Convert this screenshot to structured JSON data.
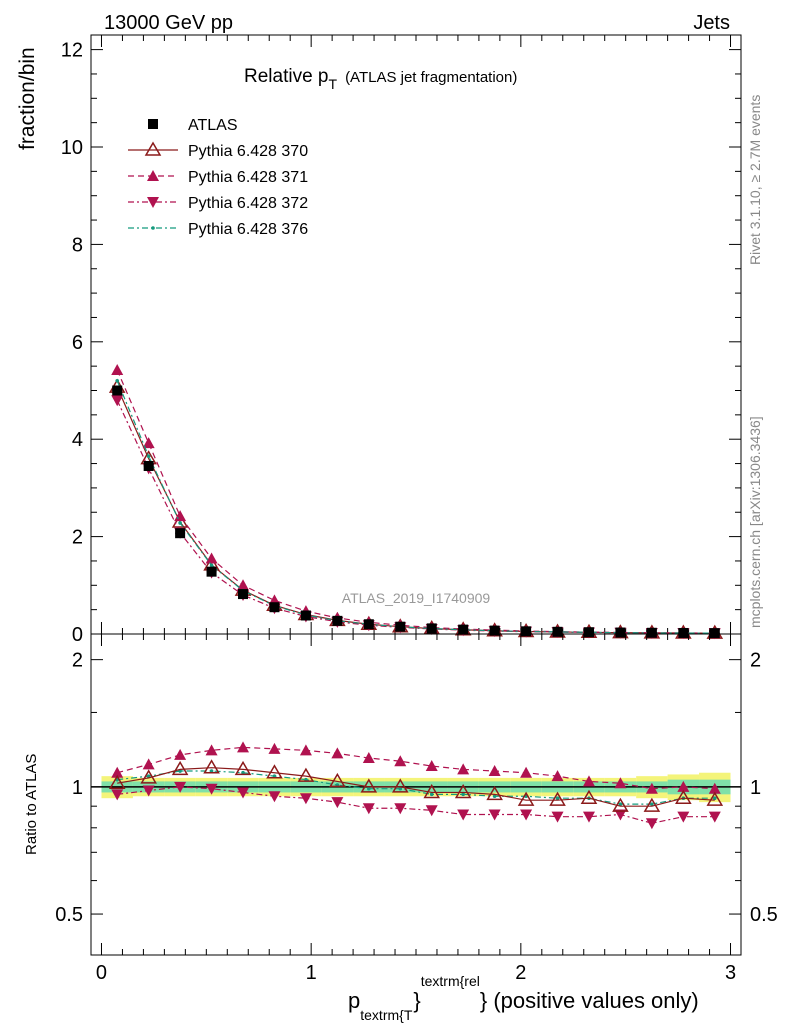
{
  "header": {
    "left": "13000 GeV pp",
    "right": "Jets"
  },
  "title": {
    "main": "Relative p",
    "sub": "T",
    "paren": "(ATLAS jet fragmentation)"
  },
  "side_labels": {
    "rivet": "Rivet 3.1.10, ≥ 2.7M events",
    "mcplots": "mcplots.cern.ch [arXiv:1306.3436]"
  },
  "analysis_tag": "ATLAS_2019_I1740909",
  "colors": {
    "data": "#000000",
    "p370": "#8b1a1a",
    "p371": "#b0124f",
    "p372": "#b0124f",
    "p376": "#159a7d",
    "band_inner": "#7fe0a8",
    "band_outer": "#f4f47a"
  },
  "chart_data": [
    {
      "type": "line",
      "panel": "main",
      "ylabel": "fraction/bin",
      "xlim": [
        -0.05,
        3.05
      ],
      "ylim": [
        0,
        12.3
      ],
      "yticks": [
        0,
        2,
        4,
        6,
        8,
        10,
        12
      ],
      "x": [
        0.075,
        0.225,
        0.375,
        0.525,
        0.675,
        0.825,
        0.975,
        1.125,
        1.275,
        1.425,
        1.575,
        1.725,
        1.875,
        2.025,
        2.175,
        2.325,
        2.475,
        2.625,
        2.775,
        2.925
      ],
      "series": [
        {
          "name": "ATLAS",
          "marker": "square",
          "values": [
            5.0,
            3.45,
            2.07,
            1.28,
            0.82,
            0.55,
            0.38,
            0.27,
            0.2,
            0.15,
            0.115,
            0.09,
            0.07,
            0.055,
            0.045,
            0.037,
            0.03,
            0.025,
            0.021,
            0.018
          ]
        },
        {
          "name": "Pythia 6.428 370",
          "marker": "triangle-open",
          "dash": "solid",
          "values": [
            5.07,
            3.6,
            2.3,
            1.42,
            0.9,
            0.59,
            0.4,
            0.28,
            0.2,
            0.15,
            0.112,
            0.087,
            0.067,
            0.051,
            0.042,
            0.035,
            0.027,
            0.023,
            0.02,
            0.017
          ]
        },
        {
          "name": "Pythia 6.428 371",
          "marker": "triangle-up",
          "dash": "dashed",
          "values": [
            5.42,
            3.92,
            2.42,
            1.55,
            1.0,
            0.69,
            0.47,
            0.33,
            0.24,
            0.18,
            0.132,
            0.103,
            0.08,
            0.061,
            0.049,
            0.039,
            0.031,
            0.025,
            0.021,
            0.018
          ]
        },
        {
          "name": "Pythia 6.428 372",
          "marker": "triangle-down",
          "dash": "dashdot",
          "values": [
            4.8,
            3.4,
            2.08,
            1.26,
            0.8,
            0.53,
            0.36,
            0.25,
            0.18,
            0.135,
            0.103,
            0.078,
            0.06,
            0.048,
            0.039,
            0.032,
            0.026,
            0.021,
            0.018,
            0.016
          ]
        },
        {
          "name": "Pythia 6.428 376",
          "marker": "dot",
          "dash": "dashdot",
          "values": [
            5.2,
            3.65,
            2.28,
            1.41,
            0.89,
            0.58,
            0.39,
            0.27,
            0.2,
            0.148,
            0.112,
            0.087,
            0.066,
            0.052,
            0.043,
            0.035,
            0.027,
            0.023,
            0.02,
            0.017
          ]
        }
      ]
    },
    {
      "type": "line",
      "panel": "ratio",
      "ylabel": "Ratio to ATLAS",
      "xlabel_main": "p",
      "xlabel_sub": "textrm{T",
      "xlabel_sup": "textrm{rel",
      "xlabel_tail": "} (positive values only)",
      "xlim": [
        -0.05,
        3.05
      ],
      "ylim": [
        0.4,
        2.3
      ],
      "yticks": [
        0.5,
        1,
        2
      ],
      "ytick_labels": [
        "0.5",
        "1",
        "2"
      ],
      "xticks": [
        0,
        1,
        2,
        3
      ],
      "xtick_labels": [
        "0",
        "1",
        "2",
        "3"
      ],
      "x": [
        0.075,
        0.225,
        0.375,
        0.525,
        0.675,
        0.825,
        0.975,
        1.125,
        1.275,
        1.425,
        1.575,
        1.725,
        1.875,
        2.025,
        2.175,
        2.325,
        2.475,
        2.625,
        2.775,
        2.925
      ],
      "band_inner": [
        0.03,
        0.03,
        0.03,
        0.03,
        0.03,
        0.03,
        0.03,
        0.03,
        0.03,
        0.03,
        0.03,
        0.03,
        0.03,
        0.03,
        0.03,
        0.03,
        0.03,
        0.03,
        0.04,
        0.04
      ],
      "band_outer": [
        0.06,
        0.05,
        0.05,
        0.05,
        0.05,
        0.05,
        0.05,
        0.05,
        0.05,
        0.05,
        0.05,
        0.05,
        0.05,
        0.05,
        0.05,
        0.05,
        0.05,
        0.06,
        0.07,
        0.08
      ],
      "series": [
        {
          "name": "Pythia 6.428 370",
          "marker": "triangle-open",
          "dash": "solid",
          "values": [
            1.02,
            1.05,
            1.1,
            1.11,
            1.1,
            1.08,
            1.06,
            1.03,
            1.0,
            1.0,
            0.97,
            0.97,
            0.96,
            0.93,
            0.93,
            0.94,
            0.9,
            0.9,
            0.94,
            0.93
          ]
        },
        {
          "name": "Pythia 6.428 371",
          "marker": "triangle-up",
          "dash": "dashed",
          "values": [
            1.08,
            1.13,
            1.19,
            1.22,
            1.24,
            1.23,
            1.22,
            1.2,
            1.17,
            1.15,
            1.12,
            1.1,
            1.09,
            1.08,
            1.06,
            1.03,
            1.02,
            0.99,
            1.0,
            0.99
          ]
        },
        {
          "name": "Pythia 6.428 372",
          "marker": "triangle-down",
          "dash": "dashdot",
          "values": [
            0.96,
            0.98,
            1.0,
            0.99,
            0.97,
            0.95,
            0.94,
            0.92,
            0.89,
            0.89,
            0.88,
            0.86,
            0.86,
            0.86,
            0.85,
            0.85,
            0.86,
            0.82,
            0.85,
            0.85
          ]
        },
        {
          "name": "Pythia 6.428 376",
          "marker": "dot",
          "dash": "dashdot",
          "values": [
            1.04,
            1.06,
            1.09,
            1.09,
            1.08,
            1.06,
            1.04,
            1.01,
            0.99,
            0.99,
            0.96,
            0.96,
            0.95,
            0.95,
            0.94,
            0.94,
            0.91,
            0.91,
            0.94,
            0.94
          ]
        }
      ]
    }
  ]
}
